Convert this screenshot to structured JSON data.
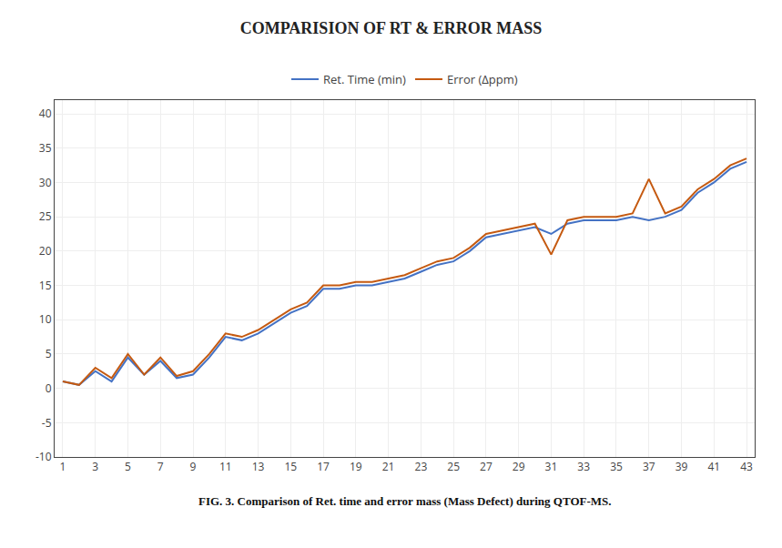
{
  "chart_data": {
    "type": "line",
    "title": "COMPARISION OF RT & ERROR MASS",
    "x": [
      1,
      2,
      3,
      4,
      5,
      6,
      7,
      8,
      9,
      10,
      11,
      12,
      13,
      14,
      15,
      16,
      17,
      18,
      19,
      20,
      21,
      22,
      23,
      24,
      25,
      26,
      27,
      28,
      29,
      30,
      31,
      32,
      33,
      34,
      35,
      36,
      37,
      38,
      39,
      40,
      41,
      42,
      43
    ],
    "series": [
      {
        "name": "Ret. Time (min)",
        "color": "#4472C4",
        "values": [
          1.0,
          0.5,
          2.5,
          1.0,
          4.5,
          2.0,
          4.0,
          1.5,
          2.0,
          4.5,
          7.5,
          7.0,
          8.0,
          9.5,
          11.0,
          12.0,
          14.5,
          14.5,
          15.0,
          15.0,
          15.5,
          16.0,
          17.0,
          18.0,
          18.5,
          20.0,
          22.0,
          22.5,
          23.0,
          23.5,
          22.5,
          24.0,
          24.5,
          24.5,
          24.5,
          25.0,
          24.5,
          25.0,
          26.0,
          28.5,
          30.0,
          32.0,
          33.0
        ]
      },
      {
        "name": "Error (Δppm)",
        "color": "#C55A11",
        "values": [
          1.0,
          0.5,
          3.0,
          1.5,
          5.0,
          2.0,
          4.5,
          1.8,
          2.5,
          5.0,
          8.0,
          7.5,
          8.5,
          10.0,
          11.5,
          12.5,
          15.0,
          15.0,
          15.5,
          15.5,
          16.0,
          16.5,
          17.5,
          18.5,
          19.0,
          20.5,
          22.5,
          23.0,
          23.5,
          24.0,
          19.5,
          24.5,
          25.0,
          25.0,
          25.0,
          25.5,
          30.5,
          25.5,
          26.5,
          29.0,
          30.5,
          32.5,
          33.5
        ]
      }
    ],
    "xlim": [
      0.5,
      43.5
    ],
    "xticks": [
      1,
      3,
      5,
      7,
      9,
      11,
      13,
      15,
      17,
      19,
      21,
      23,
      25,
      27,
      29,
      31,
      33,
      35,
      37,
      39,
      41,
      43
    ],
    "ylim": [
      -10,
      42
    ],
    "yticks": [
      -10,
      -5,
      0,
      5,
      10,
      15,
      20,
      25,
      30,
      35,
      40
    ],
    "grid": true,
    "legend": "top",
    "annotations": [
      "FIG. 3. Comparison of Ret. time and error mass (Mass Defect) during QTOF-MS."
    ]
  }
}
